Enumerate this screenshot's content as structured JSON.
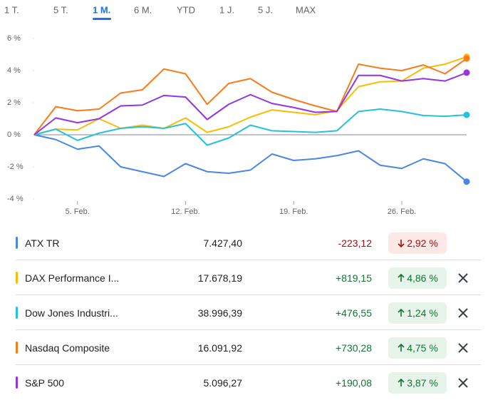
{
  "tabs": {
    "items": [
      "1 T.",
      "5 T.",
      "1 M.",
      "6 M.",
      "YTD",
      "1 J.",
      "5 J.",
      "MAX"
    ],
    "selected": 2
  },
  "chart_data": {
    "type": "line",
    "categories": [
      null,
      null,
      "5. Feb.",
      null,
      null,
      null,
      null,
      "12. Feb.",
      null,
      null,
      null,
      null,
      "19. Feb.",
      null,
      null,
      null,
      null,
      "26. Feb.",
      null,
      null,
      null
    ],
    "ylim": [
      -4,
      6
    ],
    "yticks": [
      {
        "value": 6,
        "label": "6 %"
      },
      {
        "value": 4,
        "label": "4 %"
      },
      {
        "value": 2,
        "label": "2 %"
      },
      {
        "value": 0,
        "label": "0 %"
      },
      {
        "value": -2,
        "label": "-2 %"
      },
      {
        "value": -4,
        "label": "-4 %"
      }
    ],
    "grid": false,
    "series": [
      {
        "name": "ATX TR",
        "color": "#4a86e8",
        "values": [
          0,
          -0.3,
          -0.9,
          -0.7,
          -2.0,
          -2.3,
          -2.6,
          -1.8,
          -2.3,
          -2.4,
          -2.2,
          -1.2,
          -1.6,
          -1.5,
          -1.3,
          -1.0,
          -1.9,
          -2.1,
          -1.5,
          -1.8,
          -2.92
        ]
      },
      {
        "name": "DAX Performance I...",
        "color": "#fbbc04",
        "values": [
          0,
          0.35,
          0.3,
          1.0,
          0.4,
          0.6,
          0.4,
          1.05,
          0.15,
          0.5,
          1.1,
          1.55,
          1.4,
          1.25,
          1.5,
          3.0,
          3.3,
          3.35,
          4.15,
          4.4,
          4.86
        ]
      },
      {
        "name": "Dow Jones Industri...",
        "color": "#24c1e0",
        "values": [
          0,
          0.35,
          -0.35,
          0.1,
          0.4,
          0.5,
          0.4,
          0.7,
          -0.65,
          -0.2,
          0.6,
          0.25,
          0.2,
          0.15,
          0.25,
          1.45,
          1.6,
          1.45,
          1.2,
          1.15,
          1.24
        ]
      },
      {
        "name": "Nasdaq Composite",
        "color": "#fa7b17",
        "values": [
          0,
          1.75,
          1.5,
          1.6,
          2.6,
          2.8,
          4.1,
          3.8,
          1.9,
          3.2,
          3.5,
          2.65,
          2.2,
          1.8,
          1.45,
          4.4,
          4.15,
          4.0,
          4.35,
          3.8,
          4.75
        ]
      },
      {
        "name": "S&P 500",
        "color": "#9334e6",
        "values": [
          0,
          1.05,
          0.75,
          1.0,
          1.8,
          1.85,
          2.45,
          2.35,
          0.95,
          1.9,
          2.5,
          1.95,
          1.7,
          1.4,
          1.45,
          3.7,
          3.7,
          3.35,
          3.5,
          3.35,
          3.87
        ]
      }
    ]
  },
  "table": {
    "rows": [
      {
        "price": "7.427,40",
        "change": "-223,12",
        "change_pct": "2,92 %",
        "removable": false
      },
      {
        "price": "17.678,19",
        "change": "+819,15",
        "change_pct": "4,86 %",
        "removable": true
      },
      {
        "price": "38.996,39",
        "change": "+476,55",
        "change_pct": "1,24 %",
        "removable": true
      },
      {
        "price": "16.091,92",
        "change": "+730,28",
        "change_pct": "4,75 %",
        "removable": true
      },
      {
        "price": "5.096,27",
        "change": "+190,08",
        "change_pct": "3,87 %",
        "removable": true
      }
    ]
  }
}
